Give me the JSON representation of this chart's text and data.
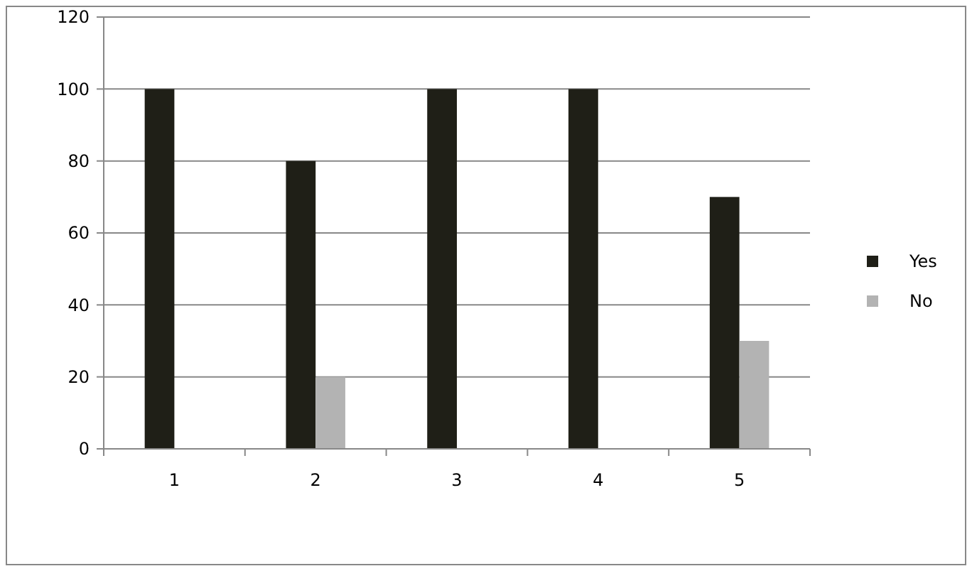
{
  "chart_data": {
    "type": "bar",
    "categories": [
      "1",
      "2",
      "3",
      "4",
      "5"
    ],
    "series": [
      {
        "name": "Yes",
        "color": "#1f1f17",
        "values": [
          100,
          80,
          100,
          100,
          70
        ]
      },
      {
        "name": "No",
        "color": "#b3b3b3",
        "values": [
          0,
          20,
          0,
          0,
          30
        ]
      }
    ],
    "ylim": [
      0,
      120
    ],
    "yticks": [
      0,
      20,
      40,
      60,
      80,
      100,
      120
    ],
    "grid": "y",
    "legend": "right"
  }
}
